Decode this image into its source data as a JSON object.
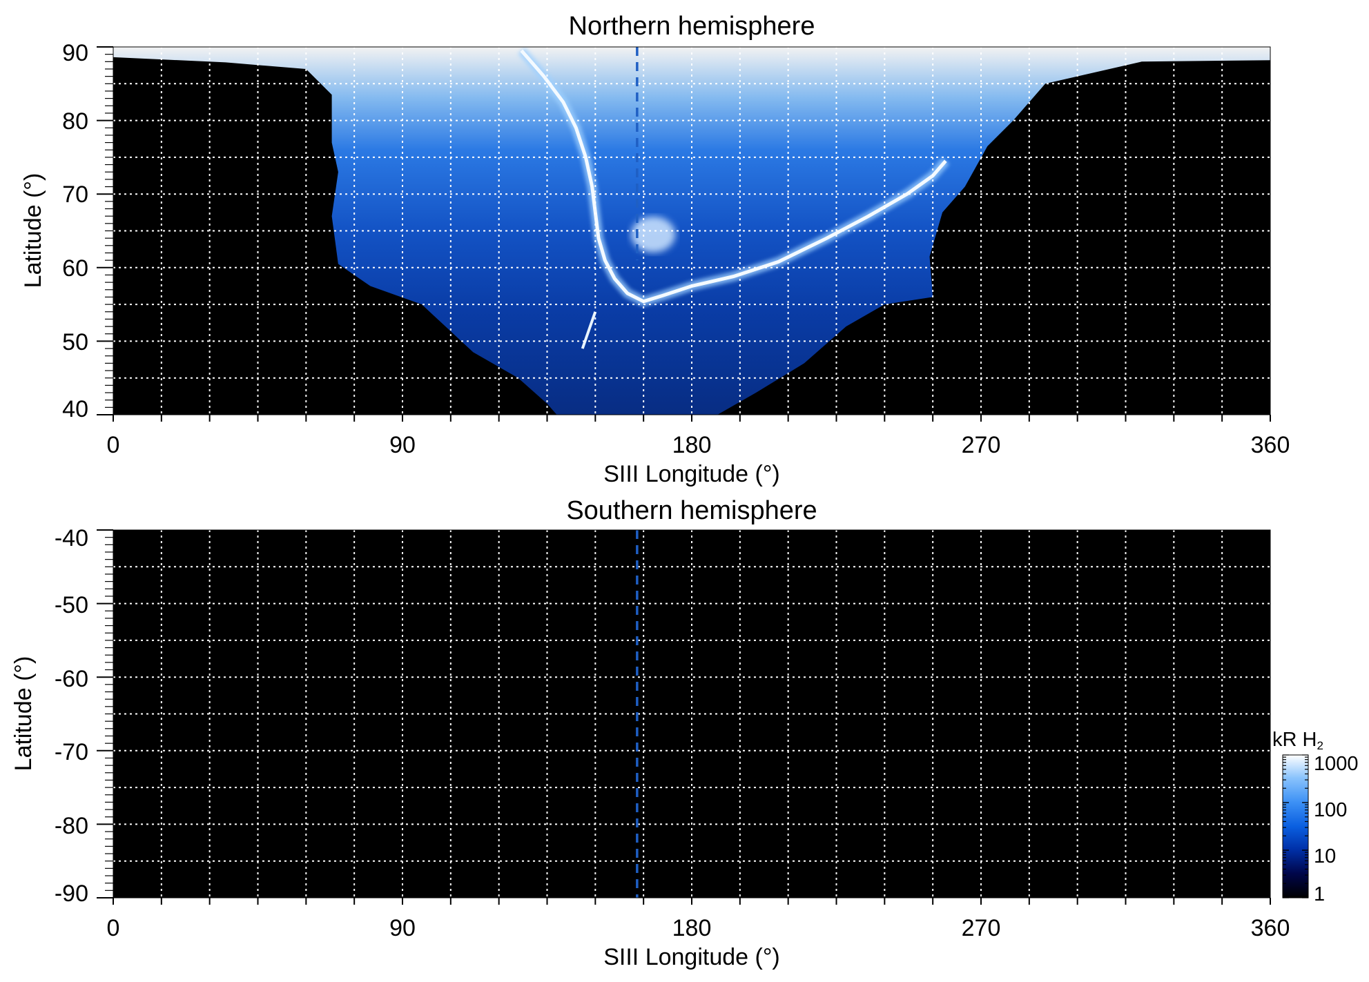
{
  "chart_data": [
    {
      "type": "heatmap",
      "title": "Northern hemisphere",
      "xlabel": "SIII Longitude (°)",
      "ylabel": "Latitude (°)",
      "xlim": [
        0,
        360
      ],
      "ylim": [
        40,
        90
      ],
      "x_ticks": [
        0,
        90,
        180,
        270,
        360
      ],
      "y_ticks": [
        40,
        50,
        60,
        70,
        80,
        90
      ],
      "grid": true,
      "grid_x_step": 15,
      "grid_y_step": 5,
      "background_color": "#000000",
      "reference_longitude": 163,
      "reference_line_lat_range": [
        61,
        90
      ],
      "emission_region": {
        "upper_outline": [
          [
            0,
            88.6
          ],
          [
            35,
            87.9
          ],
          [
            60,
            87.0
          ],
          [
            68,
            83.5
          ],
          [
            68,
            77
          ],
          [
            70,
            73
          ],
          [
            68,
            67
          ],
          [
            70,
            60.5
          ],
          [
            80,
            57.5
          ],
          [
            96,
            55.0
          ],
          [
            112,
            48.5
          ],
          [
            126,
            45.0
          ],
          [
            135,
            41.5
          ],
          [
            138,
            40.0
          ],
          [
            188,
            40.0
          ],
          [
            200,
            43.0
          ],
          [
            215,
            47.0
          ],
          [
            228,
            52.0
          ],
          [
            240,
            55.0
          ],
          [
            255,
            56.0
          ],
          [
            254,
            61.5
          ],
          [
            258,
            67.5
          ],
          [
            265,
            71.0
          ],
          [
            272,
            76.5
          ],
          [
            280,
            80.0
          ],
          [
            290,
            85.0
          ],
          [
            320,
            88.0
          ],
          [
            360,
            88.2
          ],
          [
            360,
            90.0
          ],
          [
            0,
            90.0
          ]
        ],
        "brightness_scale_kR": [
          1,
          1000
        ],
        "peak_region_lat": [
          85,
          90
        ]
      },
      "main_oval": [
        [
          127,
          89.5
        ],
        [
          134,
          86
        ],
        [
          140,
          82.5
        ],
        [
          144,
          79
        ],
        [
          147,
          75
        ],
        [
          149,
          71
        ],
        [
          150,
          67.5
        ],
        [
          151,
          64
        ],
        [
          153,
          61
        ],
        [
          156,
          58.5
        ],
        [
          160,
          56.5
        ],
        [
          165,
          55.4
        ],
        [
          171,
          56.2
        ],
        [
          180,
          57.5
        ],
        [
          193,
          58.8
        ],
        [
          207,
          60.8
        ],
        [
          222,
          64.0
        ],
        [
          235,
          67.0
        ],
        [
          247,
          70.0
        ],
        [
          255,
          72.5
        ],
        [
          259,
          74.5
        ]
      ],
      "secondary_arc": [
        [
          150,
          54
        ],
        [
          148,
          51.5
        ],
        [
          146,
          49
        ]
      ],
      "polar_spot": {
        "lon": 168,
        "lat": 64.5
      }
    },
    {
      "type": "heatmap",
      "title": "Southern hemisphere",
      "xlabel": "SIII Longitude (°)",
      "ylabel": "Latitude (°)",
      "xlim": [
        0,
        360
      ],
      "ylim": [
        -90,
        -40
      ],
      "x_ticks": [
        0,
        90,
        180,
        270,
        360
      ],
      "y_ticks": [
        -40,
        -50,
        -60,
        -70,
        -80,
        -90
      ],
      "grid": true,
      "grid_x_step": 15,
      "grid_y_step": 5,
      "background_color": "#000000",
      "reference_longitude": 163,
      "reference_line_lat_range": [
        -90,
        -40
      ]
    }
  ],
  "colorbar": {
    "title": "kR H",
    "title_subscript": "2",
    "ticks": [
      {
        "label": "1000",
        "value": 1000
      },
      {
        "label": "100",
        "value": 100
      },
      {
        "label": "10",
        "value": 10
      },
      {
        "label": "1",
        "value": 1
      }
    ],
    "range": [
      1,
      1000
    ],
    "scale": "log",
    "colors": [
      "#000000",
      "#00064a",
      "#0030a8",
      "#0a5fe0",
      "#3d91f5",
      "#8ac3fc",
      "#ffffff"
    ]
  },
  "colors": {
    "reference_line": "#1f5fc4",
    "grid": "#ffffff",
    "plot_background": "#000000"
  }
}
